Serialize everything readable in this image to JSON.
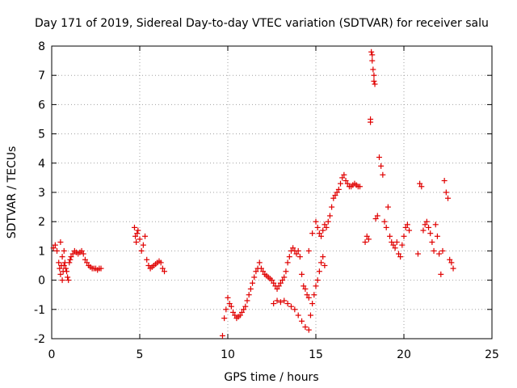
{
  "chart_data": {
    "type": "scatter",
    "title": "Day 171 of 2019, Sidereal Day-to-day VTEC variation (SDTVAR) for receiver salu",
    "xlabel": "GPS time / hours",
    "ylabel": "SDTVAR / TECUs",
    "xlim": [
      0,
      25
    ],
    "ylim": [
      -2,
      8
    ],
    "x_ticks": [
      "0",
      "5",
      "10",
      "15",
      "20",
      "25"
    ],
    "y_ticks": [
      "-2",
      "-1",
      "0",
      "1",
      "2",
      "3",
      "4",
      "5",
      "6",
      "7",
      "8"
    ],
    "grid": true,
    "marker": "+",
    "color": "#e00000",
    "series": [
      {
        "name": "SDTVAR",
        "x": [
          0.1,
          0.2,
          0.3,
          0.4,
          0.45,
          0.5,
          0.5,
          0.55,
          0.6,
          0.6,
          0.65,
          0.7,
          0.7,
          0.75,
          0.8,
          0.85,
          0.9,
          0.95,
          1.0,
          1.05,
          1.1,
          1.2,
          1.3,
          1.4,
          1.5,
          1.6,
          1.7,
          1.8,
          1.9,
          2.0,
          2.1,
          2.2,
          2.3,
          2.4,
          2.5,
          2.6,
          2.7,
          2.8,
          4.7,
          4.75,
          4.8,
          4.85,
          4.9,
          5.0,
          5.1,
          5.2,
          5.3,
          5.4,
          5.5,
          5.6,
          5.7,
          5.8,
          5.9,
          6.0,
          6.1,
          6.2,
          6.3,
          6.4,
          9.7,
          9.8,
          9.9,
          10.0,
          10.1,
          10.2,
          10.3,
          10.4,
          10.5,
          10.6,
          10.7,
          10.8,
          10.9,
          11.0,
          11.1,
          11.2,
          11.3,
          11.4,
          11.5,
          11.6,
          11.7,
          11.8,
          11.9,
          12.0,
          12.1,
          12.2,
          12.3,
          12.4,
          12.5,
          12.6,
          12.7,
          12.8,
          12.9,
          13.0,
          13.1,
          13.2,
          13.3,
          13.4,
          13.5,
          13.6,
          13.7,
          13.8,
          13.9,
          14.0,
          14.1,
          14.2,
          14.3,
          14.4,
          14.5,
          14.6,
          12.6,
          12.8,
          13.0,
          13.2,
          13.4,
          13.6,
          13.8,
          14.0,
          14.2,
          14.4,
          14.6,
          14.7,
          14.8,
          14.9,
          15.0,
          15.1,
          15.2,
          15.3,
          15.4,
          15.5,
          14.6,
          14.8,
          15.0,
          15.1,
          15.2,
          15.3,
          15.4,
          15.5,
          15.6,
          15.7,
          15.8,
          15.9,
          16.0,
          16.1,
          16.2,
          16.3,
          16.4,
          16.5,
          16.6,
          16.7,
          16.8,
          16.9,
          17.0,
          17.1,
          17.2,
          17.3,
          17.4,
          17.5,
          17.8,
          17.9,
          18.0,
          18.1,
          18.1,
          18.15,
          18.2,
          18.2,
          18.25,
          18.3,
          18.3,
          18.35,
          18.4,
          18.5,
          18.6,
          18.7,
          18.8,
          18.9,
          19.0,
          19.1,
          19.2,
          19.3,
          19.4,
          19.5,
          19.6,
          19.7,
          19.8,
          19.9,
          20.0,
          20.1,
          20.2,
          20.3,
          20.8,
          20.9,
          21.0,
          21.1,
          21.2,
          21.3,
          21.4,
          21.5,
          21.6,
          21.7,
          21.8,
          21.9,
          22.0,
          22.1,
          22.2,
          22.3,
          22.4,
          22.5,
          22.6,
          22.7,
          22.8
        ],
        "y": [
          1.1,
          1.2,
          1.0,
          0.6,
          0.4,
          1.3,
          0.2,
          0.5,
          0.0,
          0.8,
          0.3,
          0.5,
          1.0,
          0.6,
          0.4,
          0.3,
          0.1,
          0.0,
          0.6,
          0.7,
          0.8,
          0.9,
          1.0,
          0.95,
          0.9,
          0.95,
          1.0,
          0.9,
          0.7,
          0.6,
          0.5,
          0.45,
          0.4,
          0.4,
          0.4,
          0.35,
          0.4,
          0.4,
          1.8,
          1.5,
          1.3,
          1.6,
          1.7,
          1.4,
          1.0,
          1.2,
          1.5,
          0.7,
          0.5,
          0.4,
          0.45,
          0.5,
          0.55,
          0.6,
          0.65,
          0.6,
          0.4,
          0.3,
          -1.9,
          -1.3,
          -1.0,
          -0.6,
          -0.8,
          -0.9,
          -1.1,
          -1.2,
          -1.3,
          -1.25,
          -1.2,
          -1.1,
          -1.0,
          -0.9,
          -0.7,
          -0.5,
          -0.3,
          -0.1,
          0.1,
          0.3,
          0.4,
          0.6,
          0.4,
          0.3,
          0.2,
          0.15,
          0.1,
          0.05,
          0.0,
          -0.1,
          -0.2,
          -0.3,
          -0.2,
          -0.1,
          0.0,
          0.1,
          0.3,
          0.6,
          0.8,
          1.0,
          1.1,
          1.0,
          0.9,
          1.0,
          0.8,
          0.2,
          -0.2,
          -0.3,
          -0.5,
          -0.6,
          -0.8,
          -0.7,
          -0.75,
          -0.7,
          -0.8,
          -0.9,
          -1.0,
          -1.2,
          -1.4,
          -1.6,
          -1.7,
          -1.2,
          -0.8,
          -0.5,
          -0.2,
          0.0,
          0.3,
          0.6,
          0.8,
          0.5,
          1.0,
          1.6,
          2.0,
          1.8,
          1.6,
          1.5,
          1.7,
          1.9,
          1.8,
          2.0,
          2.2,
          2.5,
          2.8,
          2.9,
          3.0,
          3.1,
          3.3,
          3.5,
          3.6,
          3.4,
          3.3,
          3.2,
          3.2,
          3.25,
          3.3,
          3.25,
          3.2,
          3.2,
          1.3,
          1.5,
          1.4,
          5.5,
          5.4,
          7.8,
          7.7,
          7.5,
          7.2,
          7.0,
          6.8,
          6.7,
          2.1,
          2.2,
          4.2,
          3.9,
          3.6,
          2.0,
          1.8,
          2.5,
          1.5,
          1.3,
          1.2,
          1.1,
          1.3,
          0.9,
          0.8,
          1.2,
          1.5,
          1.8,
          1.9,
          1.7,
          0.9,
          3.3,
          3.2,
          1.7,
          1.9,
          2.0,
          1.8,
          1.6,
          1.3,
          1.0,
          1.9,
          1.5,
          0.9,
          0.2,
          1.0,
          3.4,
          3.0,
          2.8,
          0.7,
          0.6,
          0.4
        ]
      }
    ]
  }
}
